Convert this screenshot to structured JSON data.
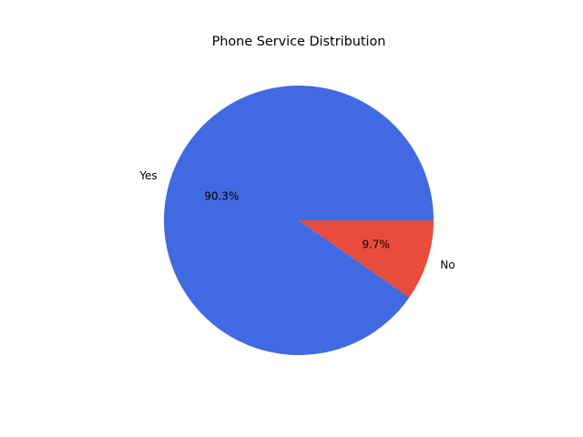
{
  "chart_data": {
    "type": "pie",
    "title": "Phone Service Distribution",
    "categories": [
      "Yes",
      "No"
    ],
    "values": [
      90.3,
      9.7
    ],
    "value_labels": [
      "90.3%",
      "9.7%"
    ],
    "colors": [
      "#4169e1",
      "#e74c3c"
    ]
  }
}
